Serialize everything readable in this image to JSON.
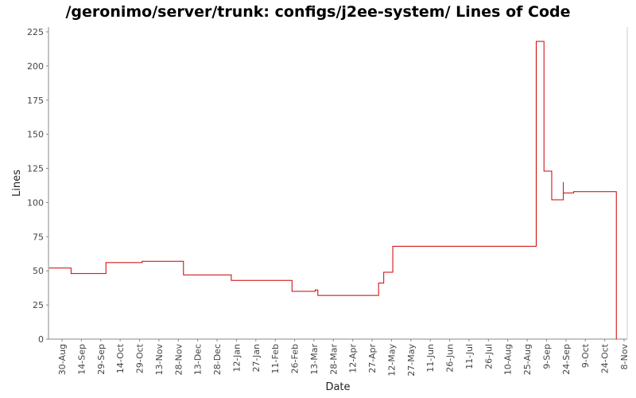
{
  "chart_data": {
    "type": "line",
    "title": "/geronimo/server/trunk: configs/j2ee-system/ Lines of Code",
    "xlabel": "Date",
    "ylabel": "Lines",
    "ylim": [
      0,
      230
    ],
    "yticks": [
      0,
      25,
      50,
      75,
      100,
      125,
      150,
      175,
      200,
      225
    ],
    "xticks": [
      "30-Aug",
      "14-Sep",
      "29-Sep",
      "14-Oct",
      "29-Oct",
      "13-Nov",
      "28-Nov",
      "13-Dec",
      "28-Dec",
      "12-Jan",
      "27-Jan",
      "11-Feb",
      "26-Feb",
      "13-Mar",
      "28-Mar",
      "12-Apr",
      "27-Apr",
      "12-May",
      "27-May",
      "11-Jun",
      "26-Jun",
      "11-Jul",
      "26-Jul",
      "10-Aug",
      "25-Aug",
      "9-Sep",
      "24-Sep",
      "9-Oct",
      "24-Oct",
      "8-Nov"
    ],
    "grid": false,
    "series": [
      {
        "color": "#cc0000",
        "step": true,
        "points": [
          [
            "20-Aug",
            52
          ],
          [
            "6-Sep",
            48
          ],
          [
            "3-Oct",
            56
          ],
          [
            "31-Oct",
            57
          ],
          [
            "2-Dec",
            47
          ],
          [
            "8-Jan",
            43
          ],
          [
            "24-Feb",
            35
          ],
          [
            "14-Mar",
            36
          ],
          [
            "16-Mar",
            32
          ],
          [
            "2-May",
            41
          ],
          [
            "6-May",
            49
          ],
          [
            "13-May",
            68
          ],
          [
            "1-Sep",
            218
          ],
          [
            "7-Sep",
            123
          ],
          [
            "13-Sep",
            102
          ],
          [
            "22-Sep",
            115
          ],
          [
            "22-Sep",
            107
          ],
          [
            "30-Sep",
            108
          ],
          [
            "2-Nov",
            0
          ]
        ]
      }
    ]
  }
}
